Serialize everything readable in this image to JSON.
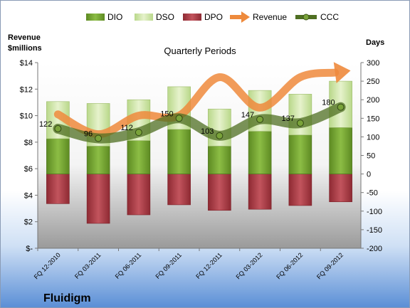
{
  "chart_data": {
    "type": "bar",
    "title": "Quarterly Periods",
    "y_left_label_line1": "Revenue",
    "y_left_label_line2": "$millions",
    "y_right_label": "Days",
    "company": "Fluidigm",
    "categories": [
      "FQ 12-2010",
      "FQ 03-2011",
      "FQ 06-2011",
      "FQ 09-2011",
      "FQ 12-2011",
      "FQ 03-2012",
      "FQ 06-2012",
      "FQ 09-2012"
    ],
    "left_axis": {
      "min": 0,
      "max": 14,
      "step": 2,
      "tick_labels": [
        "$-",
        "$2",
        "$4",
        "$6",
        "$8",
        "$10",
        "$12",
        "$14"
      ]
    },
    "right_axis": {
      "min": -200,
      "max": 300,
      "step": 50
    },
    "legend_position": "top",
    "grid": false,
    "series": [
      {
        "name": "DIO",
        "axis": "right",
        "kind": "stacked-bar",
        "color": "#7aa33a",
        "values": [
          95,
          75,
          90,
          120,
          75,
          115,
          105,
          125
        ]
      },
      {
        "name": "DSO",
        "axis": "right",
        "kind": "stacked-bar",
        "color": "#d4e7a8",
        "values": [
          100,
          115,
          110,
          115,
          100,
          110,
          110,
          125
        ]
      },
      {
        "name": "DPO",
        "axis": "right",
        "kind": "bar-negative",
        "color": "#b5404a",
        "values": [
          -80,
          -133,
          -110,
          -83,
          -98,
          -95,
          -85,
          -75
        ]
      },
      {
        "name": "Revenue",
        "axis": "left",
        "kind": "arrow-line",
        "color": "#ee8a3c",
        "values": [
          10.1,
          8.6,
          10.0,
          10.0,
          12.9,
          10.6,
          12.9,
          13.3
        ]
      },
      {
        "name": "CCC",
        "axis": "right",
        "kind": "line-markers",
        "color": "#4f6f22",
        "values": [
          122,
          96,
          112,
          150,
          103,
          147,
          137,
          180
        ]
      }
    ],
    "ccc_labels": [
      "122",
      "96",
      "112",
      "150",
      "103",
      "147",
      "137",
      "180"
    ]
  }
}
